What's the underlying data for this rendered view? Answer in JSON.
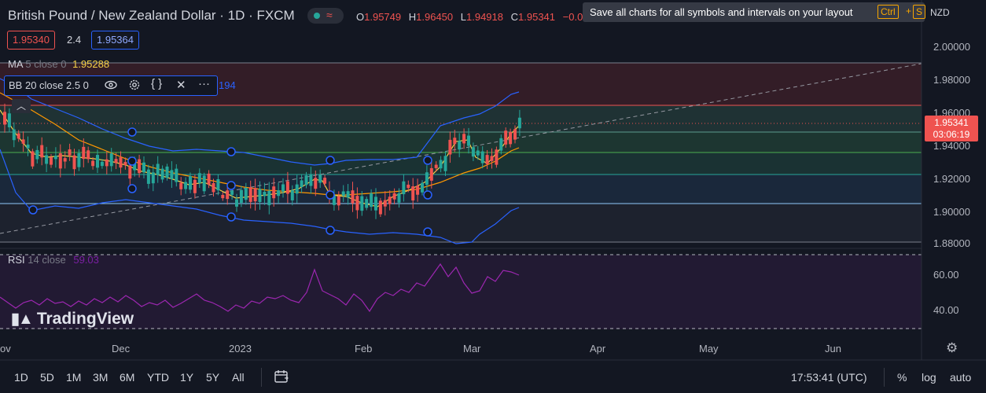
{
  "header": {
    "symbol_title": "British Pound / New Zealand Dollar · 1D · FXCM",
    "live_icon": "wave-icon",
    "ohlc": [
      {
        "k": "O",
        "v": "1.95749"
      },
      {
        "k": "H",
        "v": "1.96450"
      },
      {
        "k": "L",
        "v": "1.94918"
      },
      {
        "k": "C",
        "v": "1.95341"
      },
      {
        "k": "",
        "v": "−0.0"
      }
    ],
    "currency": "NZD"
  },
  "tooltip": {
    "text": "Save all charts for all symbols and intervals on your layout",
    "key1": "Ctrl",
    "plus": "+",
    "key2": "S"
  },
  "quote": {
    "sell": "1.95340",
    "spread": "2.4",
    "buy": "1.95364"
  },
  "indicators": {
    "ma_label": "MA",
    "ma_params": "5 close 0",
    "ma_value": "1.95288",
    "bb_label": "BB",
    "bb_params": "20 close 2.5 0",
    "bb_tail": "194",
    "rsi_label": "RSI",
    "rsi_params": "14 close",
    "rsi_value": "59.03"
  },
  "price_axis": [
    "2.00000",
    "1.98000",
    "1.96000",
    "1.94000",
    "1.92000",
    "1.90000",
    "1.88000"
  ],
  "current_price": {
    "value": "1.95341",
    "countdown": "03:06:19"
  },
  "rsi_axis": [
    "60.00",
    "40.00"
  ],
  "time_axis": [
    "ov",
    "Dec",
    "2023",
    "Feb",
    "Mar",
    "Apr",
    "May",
    "Jun"
  ],
  "logo_text": "TradingView",
  "timeframes": [
    "1D",
    "5D",
    "1M",
    "3M",
    "6M",
    "YTD",
    "1Y",
    "5Y",
    "All"
  ],
  "bottom": {
    "clock": "17:53:41 (UTC)",
    "percent": "%",
    "log": "log",
    "auto": "auto"
  },
  "colors": {
    "up": "#26a69a",
    "down": "#ef5350",
    "ma": "#f7d146",
    "bb": "#2962ff",
    "rsi": "#9c27b0",
    "ema": "#ff9800"
  }
}
